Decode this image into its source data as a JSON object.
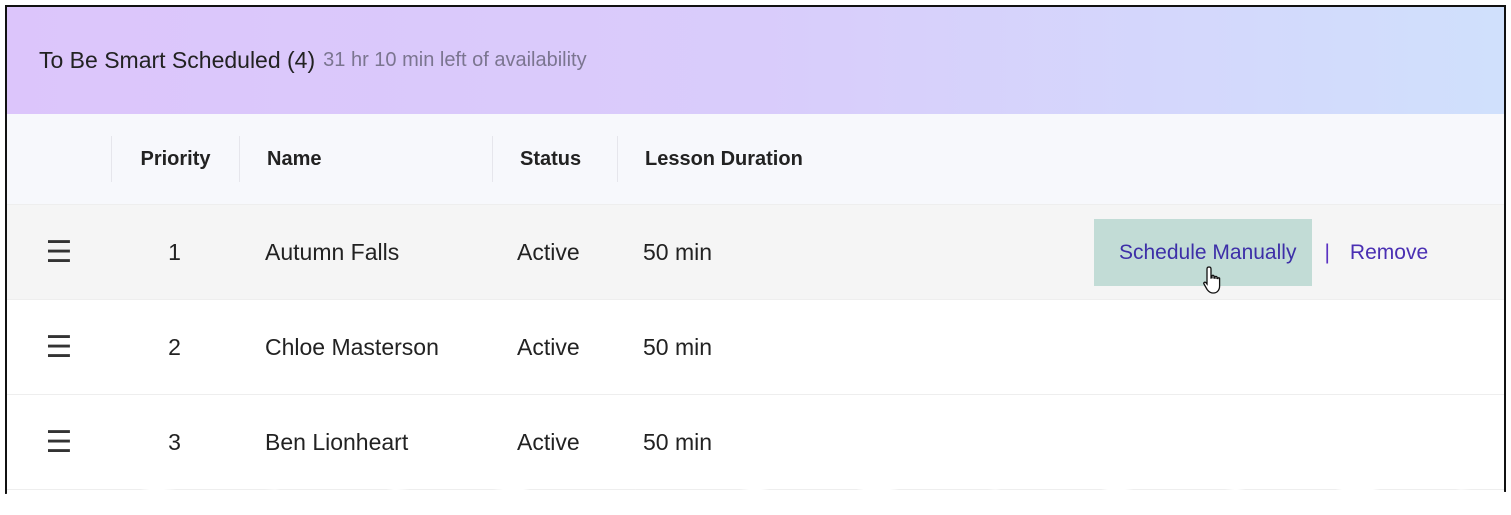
{
  "header": {
    "title": "To Be Smart Scheduled (4)",
    "subtitle": "31 hr 10 min left of availability"
  },
  "columns": [
    "",
    "Priority",
    "Name",
    "Status",
    "Lesson Duration"
  ],
  "rows": [
    {
      "priority": "1",
      "name": "Autumn Falls",
      "status": "Active",
      "duration": "50 min",
      "hovered": true
    },
    {
      "priority": "2",
      "name": "Chloe Masterson",
      "status": "Active",
      "duration": "50 min"
    },
    {
      "priority": "3",
      "name": "Ben Lionheart",
      "status": "Active",
      "duration": "50 min"
    }
  ],
  "actions": {
    "schedule_manually": "Schedule Manually",
    "separator": "|",
    "remove": "Remove"
  },
  "icons": {
    "drag": "drag-handle-icon",
    "cursor": "hand-pointer-icon"
  },
  "colors": {
    "action_hover_bg": "#c2dcd6",
    "link": "#4a2fb3"
  }
}
